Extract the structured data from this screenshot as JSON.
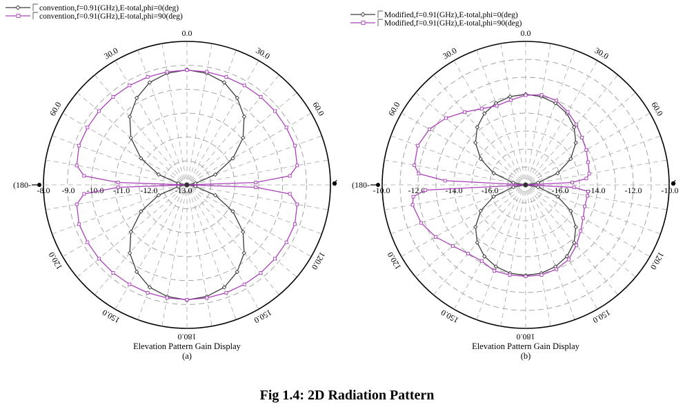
{
  "figure": {
    "caption": "Fig 1.4: 2D Radiation Pattern"
  },
  "chart_data": [
    {
      "type": "polar-line",
      "panel_label": "(a)",
      "xlabel": "Elevation Pattern Gain Display",
      "theta_ticks": [
        "0.0",
        "30.0",
        "60.0",
        "30.0",
        "60.0",
        "120.0",
        "150.0",
        "180.0",
        "150.0",
        "120.0"
      ],
      "theta_side_label": "(180-",
      "r_ticks": [
        "-8.0",
        "-9.0",
        "-10.0",
        "-11.0",
        "-12.0",
        "-13.0"
      ],
      "rlim": [
        -13.0,
        -8.0
      ],
      "grid": true,
      "legend_position": "top-left",
      "series": [
        {
          "name": "convention,f=0.91(GHz),E-total,phi=0(deg)",
          "color": "#3a3a3a",
          "marker": "diamond",
          "theta": [
            0,
            10,
            20,
            30,
            40,
            50,
            60,
            70,
            80,
            90,
            100,
            110,
            120,
            130,
            140,
            150,
            160,
            170,
            180
          ],
          "r": [
            -8.99,
            -9.05,
            -9.2,
            -9.5,
            -9.9,
            -10.45,
            -11.15,
            -11.95,
            -12.7,
            -13.0,
            -12.7,
            -11.95,
            -11.15,
            -10.45,
            -9.9,
            -9.5,
            -9.2,
            -9.05,
            -8.99
          ]
        },
        {
          "name": "convention,f=0.91(GHz),E-total,phi=90(deg)",
          "color": "#a840b8",
          "marker": "square",
          "theta": [
            0,
            10,
            20,
            30,
            40,
            50,
            60,
            70,
            80,
            85,
            88,
            90,
            92,
            95,
            100,
            110,
            120,
            130,
            140,
            150,
            160,
            170,
            180
          ],
          "r": [
            -9.0,
            -9.0,
            -9.0,
            -9.0,
            -9.0,
            -9.0,
            -9.0,
            -9.0,
            -9.1,
            -9.4,
            -10.6,
            -13.0,
            -10.6,
            -9.4,
            -9.1,
            -9.0,
            -9.0,
            -9.0,
            -9.0,
            -9.0,
            -9.0,
            -9.0,
            -9.0
          ]
        }
      ]
    },
    {
      "type": "polar-line",
      "panel_label": "(b)",
      "xlabel": "Elevation Pattern Gain Display",
      "theta_ticks": [
        "0.0",
        "30.0",
        "60.0",
        "30.0",
        "60.0",
        "120.0",
        "150.0",
        "180.0",
        "150.0",
        "120.0"
      ],
      "theta_side_label": "(180-",
      "r_ticks": [
        "-10.0",
        "-12.0",
        "-14.0",
        "-16.0",
        "-16.0",
        "-14.0",
        "-12.0",
        "-10.0"
      ],
      "rlim": [
        -18.0,
        -10.0
      ],
      "grid": true,
      "legend_position": "top-left",
      "series": [
        {
          "name": "Modified,f=0.91(GHz),E-total,phi=0(deg)",
          "color": "#3a3a3a",
          "marker": "diamond",
          "theta": [
            0,
            10,
            20,
            30,
            40,
            50,
            60,
            70,
            80,
            90,
            100,
            110,
            120,
            130,
            140,
            150,
            160,
            170,
            180
          ],
          "r": [
            -12.95,
            -13.0,
            -13.15,
            -13.4,
            -13.8,
            -14.35,
            -15.1,
            -16.1,
            -17.3,
            -18.0,
            -17.3,
            -16.1,
            -15.1,
            -14.35,
            -13.8,
            -13.4,
            -13.15,
            -13.0,
            -12.95
          ]
        },
        {
          "name": "Modified,f=0.91(GHz),E-total,phi=90(deg)",
          "color": "#a840b8",
          "marker": "square",
          "theta": [
            -90,
            -87,
            -84,
            -80,
            -70,
            -60,
            -50,
            -40,
            -30,
            -20,
            -10,
            0,
            10,
            20,
            30,
            40,
            50,
            60,
            70,
            80,
            84,
            87,
            90,
            93,
            96,
            100,
            110,
            120,
            130,
            140,
            150,
            160,
            170,
            180,
            -170,
            -160,
            -150,
            -140,
            -130,
            -120,
            -110,
            -100,
            -96,
            -93
          ],
          "r": [
            -18.0,
            -13.5,
            -12.0,
            -11.7,
            -11.6,
            -11.8,
            -12.2,
            -12.7,
            -13.1,
            -13.3,
            -13.2,
            -13.0,
            -12.9,
            -13.0,
            -13.3,
            -13.6,
            -13.9,
            -14.1,
            -14.3,
            -14.4,
            -14.6,
            -15.4,
            -18.0,
            -15.3,
            -14.5,
            -14.5,
            -14.5,
            -14.3,
            -14.0,
            -13.6,
            -13.2,
            -13.0,
            -12.9,
            -12.9,
            -12.9,
            -12.9,
            -13.1,
            -13.0,
            -12.7,
            -12.2,
            -11.8,
            -11.6,
            -11.7,
            -12.4
          ]
        }
      ]
    }
  ]
}
